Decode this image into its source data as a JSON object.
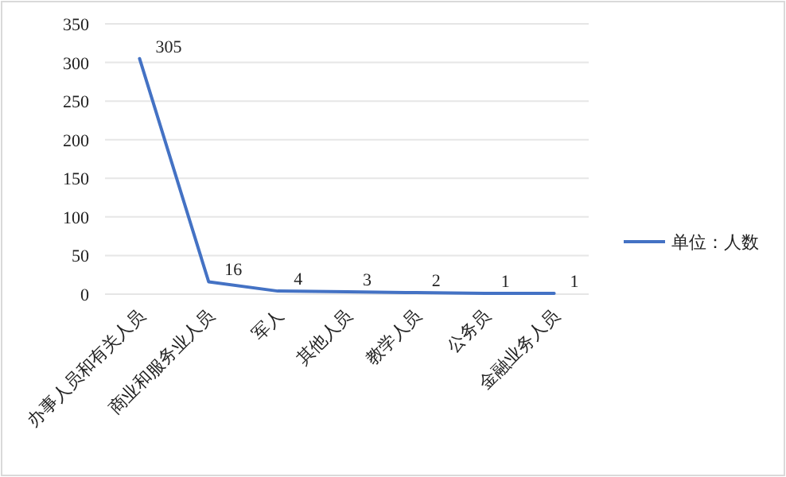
{
  "chart_data": {
    "type": "line",
    "categories": [
      "办事人员和有关人员",
      "商业和服务业人员",
      "军人",
      "其他人员",
      "教学人员",
      "公务员",
      "金融业务人员"
    ],
    "series": [
      {
        "name": "单位：人数",
        "color": "#4472c4",
        "values": [
          305,
          16,
          4,
          3,
          2,
          1,
          1
        ]
      }
    ],
    "ylim": [
      0,
      350
    ],
    "yticks": [
      0,
      50,
      100,
      150,
      200,
      250,
      300,
      350
    ],
    "grid": "y",
    "legend": "right",
    "data_labels": true,
    "marker": "none",
    "line_style": "solid"
  }
}
